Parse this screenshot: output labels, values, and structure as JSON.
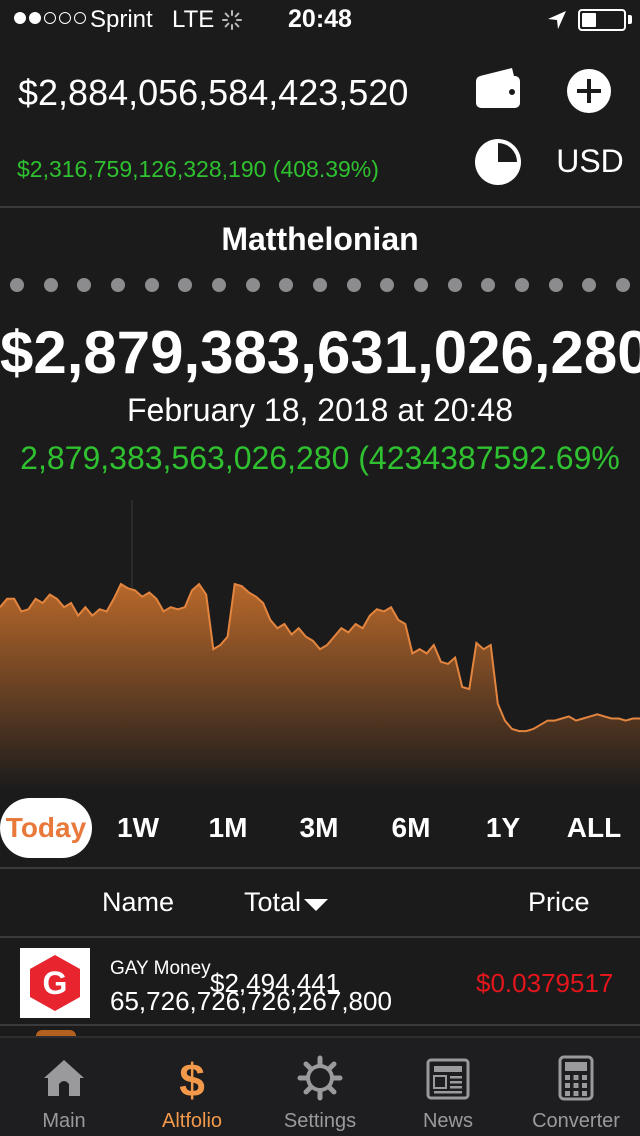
{
  "status_bar": {
    "carrier": "Sprint",
    "network": "LTE",
    "time": "20:48",
    "signal_bars_filled": 2,
    "signal_bars_total": 5,
    "battery_level": 0.35,
    "icons": [
      "activity-spinner-icon",
      "location-arrow-icon",
      "battery-icon"
    ]
  },
  "header": {
    "total_value": "$2,884,056,584,423,520",
    "total_change": "$2,316,759,126,328,190 (408.39%)",
    "currency": "USD",
    "wallet_icon": "wallet-icon",
    "add_icon": "plus-circle-icon",
    "pie_icon": "pie-chart-icon"
  },
  "portfolio": {
    "name": "Matthelonian",
    "page_count": 19,
    "value": "$2,879,383,631,026,280",
    "date": "February 18, 2018 at 20:48",
    "change": "2,879,383,563,026,280 (4234387592.69%"
  },
  "chart_data": {
    "type": "area",
    "title": "",
    "xlabel": "",
    "ylabel": "",
    "ylim": [
      0,
      100
    ],
    "grid": false,
    "line_color": "#e3853e",
    "fill_top_color": "#b8682a",
    "fill_bottom_color": "#1b1b1c",
    "x": [
      0,
      1,
      2,
      3,
      4,
      5,
      6,
      7,
      8,
      9,
      10,
      11,
      12,
      13,
      14,
      15,
      16,
      17,
      18,
      19,
      20,
      21,
      22,
      23,
      24,
      25,
      26,
      27,
      28,
      29,
      30,
      31,
      32,
      33,
      34,
      35,
      36,
      37,
      38,
      39,
      40,
      41,
      42,
      43,
      44,
      45,
      46,
      47,
      48,
      49,
      50,
      51,
      52,
      53,
      54,
      55,
      56,
      57,
      58,
      59,
      60,
      61,
      62,
      63,
      64,
      65,
      66,
      67,
      68,
      69,
      70,
      71,
      72,
      73,
      74,
      75,
      76,
      77,
      78,
      79,
      80,
      81,
      82,
      83,
      84,
      85,
      86,
      87,
      88,
      89,
      90
    ],
    "values": [
      68,
      72,
      72,
      66,
      67,
      72,
      70,
      74,
      72,
      68,
      70,
      64,
      68,
      64,
      67,
      66,
      72,
      79,
      77,
      76,
      73,
      75,
      72,
      66,
      68,
      67,
      68,
      76,
      79,
      74,
      48,
      50,
      54,
      79,
      78,
      75,
      73,
      70,
      62,
      58,
      60,
      55,
      58,
      54,
      52,
      48,
      50,
      54,
      58,
      56,
      60,
      58,
      64,
      67,
      66,
      68,
      62,
      60,
      46,
      48,
      46,
      50,
      42,
      41,
      44,
      30,
      29,
      51,
      48,
      50,
      22,
      14,
      10,
      9,
      9,
      10,
      12,
      14,
      14,
      15,
      16,
      14,
      15,
      16,
      17,
      16,
      15,
      15,
      14,
      15,
      15
    ]
  },
  "range_tabs": {
    "items": [
      {
        "label": "Today",
        "active": true
      },
      {
        "label": "1W",
        "active": false
      },
      {
        "label": "1M",
        "active": false
      },
      {
        "label": "3M",
        "active": false
      },
      {
        "label": "6M",
        "active": false
      },
      {
        "label": "1Y",
        "active": false
      },
      {
        "label": "ALL",
        "active": false
      }
    ]
  },
  "table": {
    "col_name": "Name",
    "col_total": "Total",
    "col_price": "Price",
    "sort_icon": "sort-descending-triangle-icon",
    "rows": [
      {
        "name": "GAY Money",
        "total": "$2,494,441",
        "holdings": "65,726,726,726,267,800",
        "price": "$0.0379517",
        "price_color": "#e3161c",
        "logo_letter": "G",
        "logo_color": "#e8242f"
      }
    ]
  },
  "tab_bar": {
    "items": [
      {
        "label": "Main",
        "icon": "home-icon",
        "active": false
      },
      {
        "label": "Altfolio",
        "icon": "dollar-icon",
        "active": true
      },
      {
        "label": "Settings",
        "icon": "gear-icon",
        "active": false
      },
      {
        "label": "News",
        "icon": "newspaper-icon",
        "active": false
      },
      {
        "label": "Converter",
        "icon": "calculator-icon",
        "active": false
      }
    ]
  },
  "colors": {
    "background": "#1b1b1c",
    "positive": "#2fc12f",
    "negative": "#e3161c",
    "accent": "#f2994a"
  }
}
